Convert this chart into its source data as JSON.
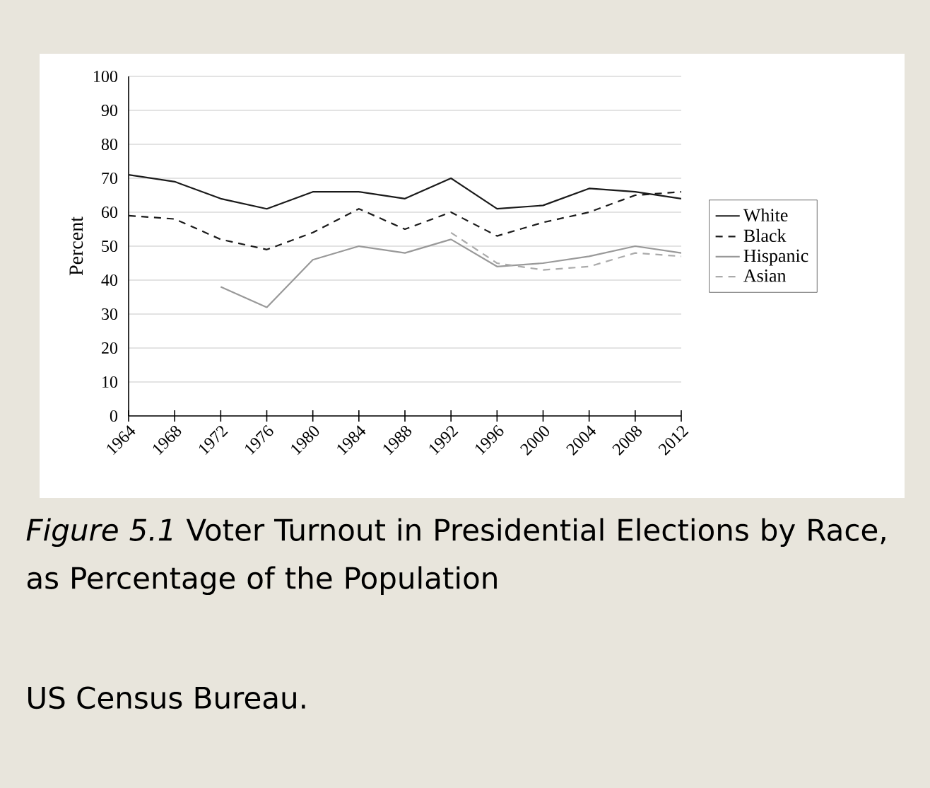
{
  "chart_data": {
    "type": "line",
    "title": "*Figure 5.1*  Voter Turnout in Presidential Elections by Race, as Percentage of the Population",
    "ylabel": "Percent",
    "x": [
      1964,
      1968,
      1972,
      1976,
      1980,
      1984,
      1988,
      1992,
      1996,
      2000,
      2004,
      2008,
      2012
    ],
    "xlim": [
      1964,
      2012
    ],
    "xticks": [
      1964,
      1968,
      1972,
      1976,
      1980,
      1984,
      1988,
      1992,
      1996,
      2000,
      2004,
      2008,
      2012
    ],
    "ylim": [
      0,
      100
    ],
    "yticks": [
      0,
      10,
      20,
      30,
      40,
      50,
      60,
      70,
      80,
      90,
      100
    ],
    "grid": "y",
    "legend": "right",
    "marker": "none",
    "series": [
      {
        "name": "White",
        "color": "#1a1a1a",
        "line_style": "solid",
        "values": [
          71,
          69,
          64,
          61,
          66,
          66,
          64,
          70,
          61,
          62,
          67,
          66,
          64
        ]
      },
      {
        "name": "Black",
        "color": "#1a1a1a",
        "line_style": "dashed",
        "values": [
          59,
          58,
          52,
          49,
          54,
          61,
          55,
          60,
          53,
          57,
          60,
          65,
          66
        ]
      },
      {
        "name": "Hispanic",
        "color": "#999999",
        "line_style": "solid",
        "values": [
          null,
          null,
          38,
          32,
          46,
          50,
          48,
          52,
          44,
          45,
          47,
          50,
          48
        ]
      },
      {
        "name": "Asian",
        "color": "#aaaaaa",
        "line_style": "dashed",
        "values": [
          null,
          null,
          null,
          null,
          null,
          null,
          null,
          54,
          45,
          43,
          44,
          48,
          47
        ]
      }
    ],
    "annotations": [
      "US Census Bureau."
    ]
  }
}
